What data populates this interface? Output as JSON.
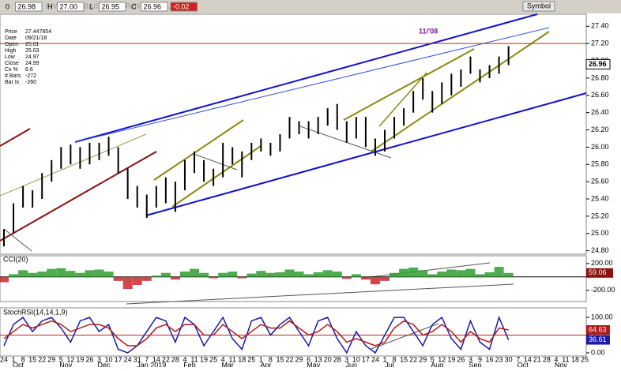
{
  "header": {
    "title": "UDN - INVERSE DB US DOLLAR INDEX BULL",
    "fields": [
      "0",
      "26.98",
      "H",
      "27.00",
      "L",
      "26.95",
      "C",
      "26.96",
      "-0.02"
    ],
    "button": "Symbol"
  },
  "info_box": [
    [
      "Price",
      "27.447854"
    ],
    [
      "Date",
      "09/21/18"
    ],
    [
      "Open",
      "25.01"
    ],
    [
      "High",
      "25.03"
    ],
    [
      "Low",
      "24.97"
    ],
    [
      "Close",
      "24.99"
    ],
    [
      "Cx %",
      "6.6"
    ],
    [
      "# Bars",
      "-272"
    ],
    [
      "Bar Ix",
      "-260"
    ]
  ],
  "x_axis": {
    "days": [
      "24",
      "1",
      "8",
      "15",
      "22",
      "29",
      "5",
      "12",
      "19",
      "26",
      "3",
      "10",
      "17",
      "24",
      "31",
      "7",
      "14",
      "22",
      "28",
      "4",
      "11",
      "19",
      "25",
      "4",
      "11",
      "18",
      "25",
      "1",
      "8",
      "15",
      "22",
      "29",
      "6",
      "13",
      "20",
      "28",
      "3",
      "10",
      "17",
      "24",
      "1",
      "8",
      "15",
      "22",
      "29",
      "5",
      "12",
      "19",
      "26",
      "3",
      "9",
      "16",
      "23",
      "30",
      "7",
      "14",
      "21",
      "28",
      "4",
      "11",
      "18",
      "25"
    ],
    "months": [
      {
        "label": "Oct",
        "week": 1
      },
      {
        "label": "Nov",
        "week": 6
      },
      {
        "label": "Dec",
        "week": 10
      },
      {
        "label": "Jan 2019",
        "week": 15
      },
      {
        "label": "Feb",
        "week": 19
      },
      {
        "label": "Mar",
        "week": 23
      },
      {
        "label": "Apr",
        "week": 27
      },
      {
        "label": "May",
        "week": 32
      },
      {
        "label": "Jun",
        "week": 36
      },
      {
        "label": "Jul",
        "week": 40
      },
      {
        "label": "Aug",
        "week": 45
      },
      {
        "label": "Sep",
        "week": 49
      },
      {
        "label": "Oct",
        "week": 54
      },
      {
        "label": "Nov",
        "week": 58
      }
    ]
  },
  "chart_data": [
    {
      "type": "ohlc",
      "color": "#000000",
      "high": [
        25.05,
        25.35,
        25.55,
        25.5,
        25.7,
        25.85,
        26.0,
        26.03,
        26.0,
        26.05,
        26.05,
        26.12,
        26.0,
        25.75,
        25.55,
        25.45,
        25.55,
        25.65,
        25.6,
        25.85,
        25.95,
        25.85,
        25.75,
        26.05,
        26.0,
        25.95,
        26.05,
        26.1,
        26.05,
        26.15,
        26.35,
        26.3,
        26.3,
        26.35,
        26.45,
        26.5,
        26.3,
        26.35,
        26.35,
        26.1,
        26.2,
        26.35,
        26.45,
        26.65,
        26.8,
        26.65,
        26.75,
        26.85,
        26.9,
        27.05,
        26.9,
        26.95,
        27.05,
        27.17
      ],
      "low": [
        24.85,
        25.0,
        25.3,
        25.3,
        25.4,
        25.6,
        25.75,
        25.8,
        25.75,
        25.8,
        25.85,
        25.9,
        25.7,
        25.4,
        25.3,
        25.18,
        25.3,
        25.35,
        25.25,
        25.5,
        25.7,
        25.6,
        25.55,
        25.65,
        25.8,
        25.65,
        25.85,
        25.95,
        25.9,
        25.95,
        26.1,
        26.15,
        26.1,
        26.15,
        26.25,
        26.2,
        26.05,
        26.1,
        26.0,
        25.9,
        25.95,
        26.1,
        26.25,
        26.4,
        26.55,
        26.4,
        26.5,
        26.6,
        26.7,
        26.85,
        26.75,
        26.8,
        26.85,
        26.95
      ],
      "last": {
        "value": 26.96,
        "label": "26.96"
      },
      "reference_line": 27.2,
      "annotation": "11/'08",
      "ylim": [
        24.76,
        27.54
      ],
      "yticks": [
        {
          "value": 27.4,
          "label": "27.40"
        },
        {
          "value": 27.2,
          "label": "27.20"
        },
        {
          "value": 27.0,
          "label": "27.00"
        },
        {
          "value": 26.8,
          "label": "26.80"
        },
        {
          "value": 26.6,
          "label": "26.60"
        },
        {
          "value": 26.4,
          "label": "26.40"
        },
        {
          "value": 26.2,
          "label": "26.20"
        },
        {
          "value": 26.0,
          "label": "26.00"
        },
        {
          "value": 25.8,
          "label": "25.80"
        },
        {
          "value": 25.6,
          "label": "25.60"
        },
        {
          "value": 25.4,
          "label": "25.40"
        },
        {
          "value": 25.2,
          "label": "25.20"
        },
        {
          "value": 25.0,
          "label": "25.00"
        },
        {
          "value": 24.8,
          "label": "24.80"
        }
      ]
    },
    {
      "type": "histogram",
      "title": "CCI(20)",
      "positive_color": "#2e9e2e",
      "negative_color": "#c8282d",
      "values": [
        -80,
        40,
        100,
        60,
        80,
        120,
        130,
        90,
        60,
        100,
        110,
        80,
        -60,
        -180,
        -120,
        -60,
        20,
        60,
        -40,
        80,
        120,
        60,
        -20,
        60,
        80,
        -20,
        50,
        90,
        60,
        70,
        110,
        80,
        40,
        70,
        100,
        80,
        -30,
        40,
        -40,
        -110,
        -60,
        60,
        120,
        140,
        100,
        40,
        80,
        110,
        100,
        120,
        40,
        70,
        150,
        59.06
      ],
      "ylim": [
        -368,
        316
      ],
      "yticks": [
        {
          "value": 200,
          "label": "200.00"
        },
        {
          "value": -200,
          "label": "-200.00"
        }
      ]
    },
    {
      "type": "line",
      "title": "StochRSI(14,14,1,9)",
      "series": [
        {
          "color": "#1a1aa8",
          "values": [
            20,
            80,
            100,
            60,
            90,
            100,
            70,
            30,
            90,
            100,
            60,
            80,
            10,
            0,
            20,
            60,
            100,
            90,
            30,
            100,
            80,
            20,
            60,
            100,
            40,
            10,
            90,
            100,
            50,
            80,
            100,
            60,
            20,
            90,
            100,
            40,
            0,
            60,
            20,
            0,
            50,
            100,
            100,
            60,
            20,
            80,
            100,
            40,
            10,
            90,
            30,
            10,
            100,
            36.61
          ]
        },
        {
          "color": "#b01a1a",
          "values": [
            40,
            60,
            80,
            70,
            80,
            90,
            80,
            60,
            70,
            80,
            80,
            70,
            40,
            20,
            20,
            40,
            70,
            80,
            60,
            80,
            80,
            50,
            50,
            80,
            60,
            40,
            60,
            80,
            70,
            70,
            90,
            70,
            50,
            60,
            80,
            60,
            30,
            40,
            30,
            20,
            30,
            70,
            90,
            80,
            50,
            60,
            80,
            60,
            30,
            60,
            40,
            30,
            70,
            64.63
          ]
        }
      ],
      "reference_line": 50,
      "ylim": [
        -9,
        127
      ],
      "yticks": [
        {
          "value": 100,
          "label": "100.00"
        },
        {
          "value": 50,
          "label": "50.00"
        },
        {
          "value": 0,
          "label": "0.00"
        }
      ]
    }
  ]
}
